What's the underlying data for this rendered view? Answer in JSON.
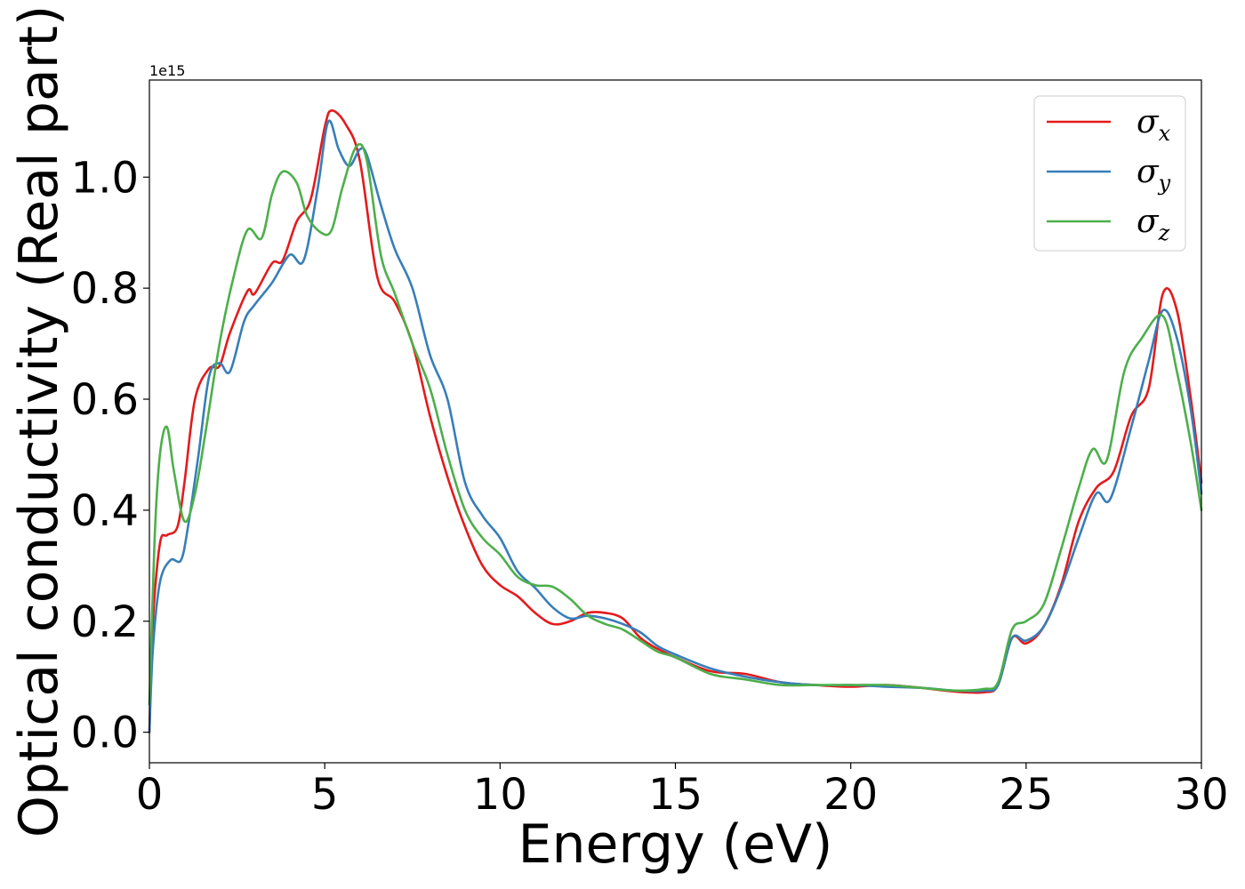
{
  "chart_data": {
    "type": "line",
    "xlabel": "Energy (eV)",
    "ylabel": "Optical conductivity (Real part)",
    "y_offset_label": "1e15",
    "y_scale": 1000000000000000.0,
    "xlim": [
      0,
      30
    ],
    "ylim": [
      -0.055,
      1.175
    ],
    "xticks": [
      0,
      5,
      10,
      15,
      20,
      25,
      30
    ],
    "xtick_labels": [
      "0",
      "5",
      "10",
      "15",
      "20",
      "25",
      "30"
    ],
    "yticks": [
      0.0,
      0.2,
      0.4,
      0.6,
      0.8,
      1.0
    ],
    "ytick_labels": [
      "0.0",
      "0.2",
      "0.4",
      "0.6",
      "0.8",
      "1.0"
    ],
    "grid": false,
    "legend_position": "top-right",
    "series": [
      {
        "name": "σx",
        "label_base": "σ",
        "label_sub": "x",
        "color": "#e41a1c",
        "x": [
          0,
          0.1,
          0.3,
          0.5,
          0.8,
          1.0,
          1.3,
          1.7,
          2.0,
          2.3,
          2.8,
          3.0,
          3.5,
          3.8,
          4.2,
          4.6,
          5.0,
          5.2,
          5.6,
          6.0,
          6.5,
          7.0,
          7.5,
          8.0,
          8.5,
          9.0,
          9.5,
          10.0,
          10.5,
          11.0,
          11.5,
          12.0,
          12.5,
          13.0,
          13.5,
          14.0,
          14.5,
          15.0,
          16.0,
          17.0,
          18.0,
          19.0,
          20.0,
          21.0,
          22.0,
          23.0,
          23.8,
          24.2,
          24.6,
          25.0,
          25.5,
          26.0,
          26.5,
          27.0,
          27.5,
          28.0,
          28.5,
          28.9,
          29.3,
          29.7,
          30.0
        ],
        "y": [
          0.0,
          0.2,
          0.34,
          0.355,
          0.37,
          0.45,
          0.6,
          0.655,
          0.66,
          0.72,
          0.795,
          0.79,
          0.845,
          0.85,
          0.92,
          0.96,
          1.09,
          1.12,
          1.095,
          1.03,
          0.82,
          0.775,
          0.7,
          0.57,
          0.46,
          0.37,
          0.3,
          0.265,
          0.245,
          0.215,
          0.195,
          0.2,
          0.215,
          0.215,
          0.205,
          0.17,
          0.15,
          0.135,
          0.11,
          0.105,
          0.09,
          0.085,
          0.082,
          0.085,
          0.08,
          0.073,
          0.072,
          0.085,
          0.17,
          0.16,
          0.19,
          0.265,
          0.38,
          0.44,
          0.47,
          0.57,
          0.62,
          0.79,
          0.76,
          0.6,
          0.45
        ]
      },
      {
        "name": "σy",
        "label_base": "σ",
        "label_sub": "y",
        "color": "#377eb8",
        "x": [
          0,
          0.1,
          0.3,
          0.6,
          0.9,
          1.1,
          1.4,
          1.7,
          2.0,
          2.3,
          2.7,
          3.0,
          3.5,
          4.0,
          4.4,
          4.8,
          5.1,
          5.4,
          5.7,
          6.0,
          6.2,
          6.6,
          7.0,
          7.5,
          8.0,
          8.5,
          9.0,
          9.5,
          10.0,
          10.5,
          11.0,
          11.5,
          12.0,
          12.5,
          13.0,
          13.5,
          14.0,
          14.5,
          15.0,
          16.0,
          17.0,
          18.0,
          19.0,
          20.0,
          21.0,
          22.0,
          23.0,
          23.8,
          24.2,
          24.6,
          25.0,
          25.5,
          26.0,
          26.5,
          27.0,
          27.4,
          28.0,
          28.5,
          28.9,
          29.3,
          29.7,
          30.0
        ],
        "y": [
          0.0,
          0.15,
          0.27,
          0.31,
          0.31,
          0.37,
          0.5,
          0.64,
          0.665,
          0.65,
          0.74,
          0.77,
          0.81,
          0.86,
          0.85,
          0.98,
          1.1,
          1.05,
          1.02,
          1.05,
          1.04,
          0.95,
          0.87,
          0.8,
          0.68,
          0.6,
          0.45,
          0.39,
          0.35,
          0.29,
          0.26,
          0.225,
          0.205,
          0.21,
          0.205,
          0.195,
          0.18,
          0.155,
          0.14,
          0.115,
          0.1,
          0.09,
          0.085,
          0.085,
          0.082,
          0.08,
          0.075,
          0.075,
          0.085,
          0.17,
          0.165,
          0.19,
          0.26,
          0.35,
          0.43,
          0.42,
          0.55,
          0.67,
          0.76,
          0.71,
          0.58,
          0.43
        ]
      },
      {
        "name": "σz",
        "label_base": "σ",
        "label_sub": "z",
        "color": "#4daf4a",
        "x": [
          0,
          0.15,
          0.3,
          0.5,
          0.7,
          1.0,
          1.3,
          1.6,
          2.0,
          2.4,
          2.8,
          3.2,
          3.5,
          3.8,
          4.2,
          4.5,
          4.9,
          5.2,
          5.5,
          5.9,
          6.2,
          6.6,
          7.0,
          7.5,
          8.0,
          8.5,
          9.0,
          9.5,
          10.0,
          10.5,
          11.0,
          11.5,
          12.0,
          12.5,
          13.0,
          13.5,
          14.0,
          14.5,
          15.0,
          16.0,
          17.0,
          18.0,
          19.0,
          20.0,
          21.0,
          22.0,
          23.0,
          23.8,
          24.2,
          24.6,
          25.0,
          25.5,
          26.0,
          26.5,
          26.9,
          27.3,
          27.8,
          28.3,
          28.9,
          29.3,
          29.7,
          30.0
        ],
        "y": [
          0.05,
          0.35,
          0.5,
          0.55,
          0.47,
          0.38,
          0.43,
          0.54,
          0.7,
          0.82,
          0.905,
          0.89,
          0.97,
          1.01,
          0.99,
          0.93,
          0.9,
          0.905,
          0.98,
          1.055,
          1.03,
          0.86,
          0.79,
          0.7,
          0.62,
          0.5,
          0.4,
          0.35,
          0.32,
          0.28,
          0.265,
          0.262,
          0.24,
          0.21,
          0.195,
          0.185,
          0.165,
          0.145,
          0.135,
          0.105,
          0.095,
          0.085,
          0.085,
          0.085,
          0.085,
          0.08,
          0.075,
          0.078,
          0.09,
          0.185,
          0.2,
          0.23,
          0.33,
          0.44,
          0.51,
          0.49,
          0.65,
          0.71,
          0.75,
          0.65,
          0.52,
          0.4
        ]
      }
    ]
  }
}
